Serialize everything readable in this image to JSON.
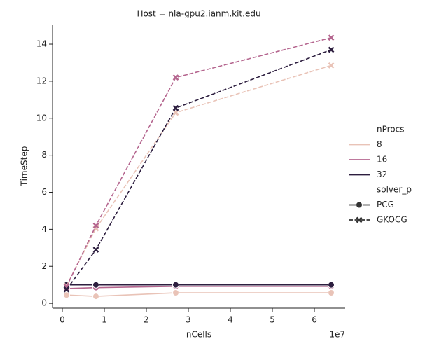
{
  "chart_data": {
    "type": "line",
    "title": "Host = nla-gpu2.ianm.kit.edu",
    "x_label": "nCells",
    "y_label": "TimeStep",
    "x_offset_label": "1e7",
    "x": [
      1000000,
      8000000,
      27000000,
      64000000
    ],
    "xlim": [
      -2330000,
      67330000
    ],
    "xticks": [
      0,
      {
        "value": 10000000,
        "label": "1"
      },
      {
        "value": 20000000,
        "label": "2"
      },
      {
        "value": 30000000,
        "label": "3"
      },
      {
        "value": 40000000,
        "label": "4"
      },
      {
        "value": 50000000,
        "label": "5"
      },
      {
        "value": 60000000,
        "label": "6"
      }
    ],
    "ylim": [
      -0.26,
      15.06
    ],
    "yticks": [
      0,
      2,
      4,
      6,
      8,
      10,
      12,
      14
    ],
    "grid": false,
    "legend": {
      "position": "right",
      "hue_title": "nProcs",
      "hue_levels": [
        {
          "name": "8",
          "color": "#e9c3b7"
        },
        {
          "name": "16",
          "color": "#b5668f"
        },
        {
          "name": "32",
          "color": "#2d1e3f"
        }
      ],
      "style_title": "solver_p",
      "style_levels": [
        {
          "name": "PCG",
          "marker": "circle",
          "dashed": false
        },
        {
          "name": "GKOCG",
          "marker": "x",
          "dashed": true
        }
      ]
    },
    "series": [
      {
        "hue": 0,
        "style": 0,
        "values": [
          0.45,
          0.38,
          0.57,
          0.57
        ]
      },
      {
        "hue": 1,
        "style": 0,
        "values": [
          0.8,
          0.85,
          0.92,
          0.92
        ]
      },
      {
        "hue": 2,
        "style": 0,
        "values": [
          1.0,
          1.0,
          1.0,
          1.0
        ]
      },
      {
        "hue": 0,
        "style": 1,
        "values": [
          0.95,
          4.05,
          10.3,
          12.85
        ]
      },
      {
        "hue": 1,
        "style": 1,
        "values": [
          0.9,
          4.2,
          12.2,
          14.35
        ]
      },
      {
        "hue": 2,
        "style": 1,
        "values": [
          0.75,
          2.9,
          10.55,
          13.7
        ]
      }
    ]
  }
}
